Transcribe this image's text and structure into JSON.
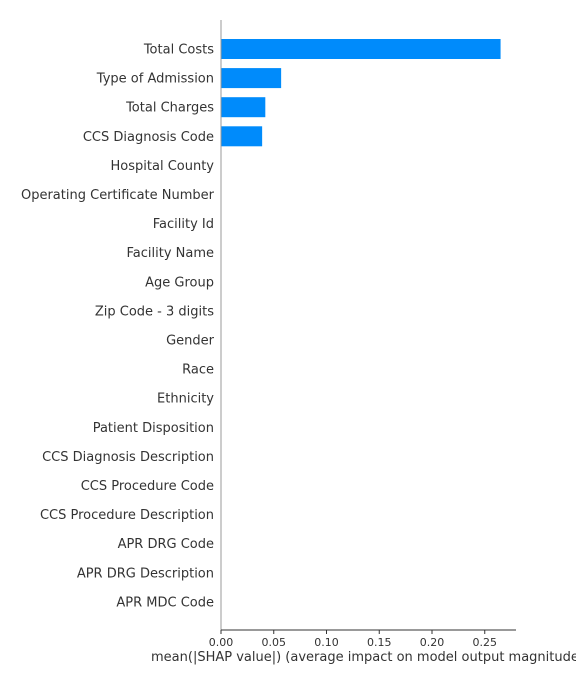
{
  "chart_data": {
    "type": "bar",
    "orientation": "horizontal",
    "title": "",
    "xlabel": "mean(|SHAP value|) (average impact on model output magnitude)",
    "ylabel": "",
    "xlim": [
      0,
      0.28
    ],
    "xticks": [
      "0.00",
      "0.05",
      "0.10",
      "0.15",
      "0.20",
      "0.25"
    ],
    "grid": false,
    "bar_color": "#008bfb",
    "categories": [
      "Total Costs",
      "Type of Admission",
      "Total Charges",
      "CCS Diagnosis Code",
      "Hospital County",
      "Operating Certificate Number",
      "Facility Id",
      "Facility Name",
      "Age Group",
      "Zip Code - 3 digits",
      "Gender",
      "Race",
      "Ethnicity",
      "Patient Disposition",
      "CCS Diagnosis Description",
      "CCS Procedure Code",
      "CCS Procedure Description",
      "APR DRG Code",
      "APR DRG Description",
      "APR MDC Code"
    ],
    "values": [
      0.265,
      0.057,
      0.042,
      0.039,
      0,
      0,
      0,
      0,
      0,
      0,
      0,
      0,
      0,
      0,
      0,
      0,
      0,
      0,
      0,
      0
    ]
  }
}
